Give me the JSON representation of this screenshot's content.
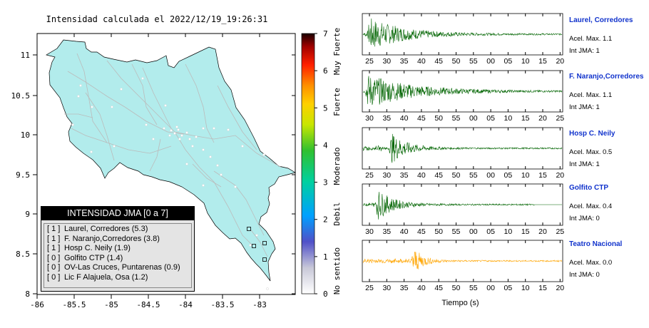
{
  "map": {
    "title": "Intensidad calculada el 2022/12/19_19:26:31",
    "xticks": [
      "-86",
      "-85.5",
      "-85",
      "-84.5",
      "-84",
      "-83.5",
      "-83"
    ],
    "yticks": [
      "11",
      "10.5",
      "10",
      "9.5",
      "9",
      "8.5",
      "8"
    ],
    "land_color": "#b2ecec",
    "road_color": "#bbbbbb"
  },
  "colorbar": {
    "ticks": [
      "0",
      "1",
      "2",
      "3",
      "4",
      "5",
      "6",
      "7"
    ],
    "labels": [
      "No sentido",
      "Debil",
      "Moderado",
      "Fuerte",
      "Muy Fuerte"
    ]
  },
  "legend": {
    "title": "INTENSIDAD JMA [0 a 7]",
    "rows": [
      {
        "level": "[ 1 ]",
        "station": "Laurel, Corredores (5.3)"
      },
      {
        "level": "[ 1 ]",
        "station": "F. Naranjo,Corredores (3.8)"
      },
      {
        "level": "[ 1 ]",
        "station": "Hosp C. Neily (1.9)"
      },
      {
        "level": "[ 0 ]",
        "station": "Golfito CTP (1.4)"
      },
      {
        "level": "[ 0 ]",
        "station": "OV-Las Cruces, Puntarenas (0.9)"
      },
      {
        "level": "[ 0 ]",
        "station": "Lic F Alajuela, Osa (1.2)"
      }
    ]
  },
  "panels": [
    {
      "station": "Laurel, Corredores",
      "accel": "Acel. Max. 1.1",
      "jma": "Int JMA: 1",
      "color": "#006400",
      "ticks": [
        "25",
        "30",
        "35",
        "40",
        "45",
        "50",
        "55",
        "00",
        "05",
        "10",
        "15",
        "20"
      ],
      "amp": 1.0,
      "onset": 0.02,
      "decay": 0.17
    },
    {
      "station": "F. Naranjo,Corredores",
      "accel": "Acel. Max. 1.1",
      "jma": "Int JMA: 1",
      "color": "#006400",
      "ticks": [
        "30",
        "35",
        "40",
        "45",
        "50",
        "55",
        "00",
        "05",
        "10",
        "15",
        "20",
        "25"
      ],
      "amp": 1.0,
      "onset": 0.01,
      "decay": 0.22
    },
    {
      "station": "Hosp C. Neily",
      "accel": "Acel. Max. 0.5",
      "jma": "Int JMA: 1",
      "color": "#006400",
      "ticks": [
        "25",
        "30",
        "35",
        "40",
        "45",
        "50",
        "55",
        "00",
        "05",
        "10",
        "15",
        "20"
      ],
      "amp": 1.0,
      "onset": 0.13,
      "decay": 0.08
    },
    {
      "station": "Golfito CTP",
      "accel": "Acel. Max. 0.4",
      "jma": "Int JMA: 0",
      "color": "#006400",
      "ticks": [
        "30",
        "35",
        "40",
        "45",
        "50",
        "55",
        "00",
        "05",
        "10",
        "15",
        "20",
        "25"
      ],
      "amp": 1.0,
      "onset": 0.06,
      "decay": 0.08
    },
    {
      "station": "Teatro Nacional",
      "accel": "Acel. Max. 0.0",
      "jma": "Int JMA: 0",
      "color": "#ffa500",
      "ticks": [
        "25",
        "30",
        "35",
        "40",
        "45",
        "50",
        "55",
        "00",
        "05",
        "10",
        "15",
        "20"
      ],
      "amp": 1.0,
      "onset": 0.24,
      "decay": 0.05
    }
  ],
  "xlabel": "Tiempo (s)"
}
